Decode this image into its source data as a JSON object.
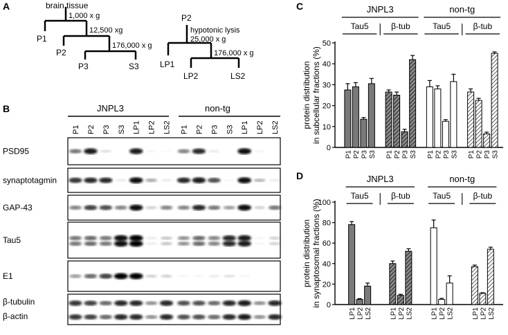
{
  "panel_a": {
    "letter": "A",
    "tree1": {
      "start": "brain tissue",
      "spin1": "1,000 x g",
      "spin2": "12,500 xg",
      "spin3": "176,000 x g",
      "p1": "P1",
      "p2": "P2",
      "p3": "P3",
      "s3": "S3"
    },
    "tree2": {
      "start": "P2",
      "step1": "hypotonic lysis",
      "step1b": "25,000 x g",
      "spin2": "176,000 x g",
      "lp1": "LP1",
      "lp2": "LP2",
      "ls2": "LS2"
    }
  },
  "panel_b": {
    "letter": "B",
    "group_left": "JNPL3",
    "group_right": "non-tg",
    "lanes": [
      "P1",
      "P2",
      "P3",
      "S3",
      "LP1",
      "LP2",
      "LS2"
    ],
    "blots": [
      {
        "label": "PSD95",
        "pattern": [
          0.55,
          0.9,
          0.15,
          0.0,
          0.9,
          0.05,
          0.03,
          0.5,
          0.85,
          0.1,
          0.0,
          0.95,
          0.05,
          0.0
        ]
      },
      {
        "label": "synaptotagmin",
        "pattern": [
          0.8,
          0.85,
          0.85,
          0.1,
          0.95,
          0.35,
          0.1,
          0.85,
          0.9,
          0.7,
          0.05,
          0.95,
          0.3,
          0.1
        ]
      },
      {
        "label": "GAP-43",
        "pattern": [
          0.5,
          0.75,
          0.7,
          0.5,
          0.95,
          0.2,
          0.5,
          0.5,
          0.85,
          0.55,
          0.4,
          0.95,
          0.2,
          0.55
        ]
      },
      {
        "label": "Tau5",
        "pattern": [
          0.55,
          0.6,
          0.55,
          0.95,
          1.0,
          0.1,
          0.25,
          0.45,
          0.6,
          0.5,
          0.85,
          0.9,
          0.05,
          0.2
        ]
      },
      {
        "label": "E1",
        "pattern": [
          0.4,
          0.6,
          0.75,
          1.0,
          1.0,
          0.2,
          0.2,
          0.05,
          0.05,
          0.1,
          0.15,
          0.05,
          0.0,
          0.0
        ]
      },
      {
        "label": "β-tubulin",
        "label2": "β-actin",
        "pattern": [
          0.8,
          0.75,
          0.6,
          0.85,
          0.85,
          0.45,
          0.85,
          0.7,
          0.7,
          0.6,
          0.85,
          0.9,
          0.45,
          0.85
        ]
      }
    ]
  },
  "chart_data": [
    {
      "panel": "C",
      "type": "bar",
      "ylabel": "protein distribution in subcellular fractions (%)",
      "ylim": [
        0,
        50
      ],
      "yticks": [
        0,
        10,
        20,
        30,
        40,
        50
      ],
      "groups": [
        "JNPL3",
        "non-tg"
      ],
      "subgroups": [
        "Tau5",
        "β-tub",
        "Tau5",
        "β-tub"
      ],
      "categories": [
        "P1",
        "P2",
        "P3",
        "S3"
      ],
      "series": [
        {
          "values": [
            27.5,
            29,
            13.5,
            30.5
          ],
          "errors": [
            3,
            2,
            0.8,
            2.5
          ],
          "fill": "gray"
        },
        {
          "values": [
            26.5,
            25,
            7.5,
            42
          ],
          "errors": [
            1,
            1.5,
            1.2,
            2
          ],
          "fill": "hatch-dark"
        },
        {
          "values": [
            29,
            28,
            12.5,
            31.5
          ],
          "errors": [
            3,
            1.5,
            0.8,
            3.5
          ],
          "fill": "white"
        },
        {
          "values": [
            26.5,
            22.5,
            6.5,
            45
          ],
          "errors": [
            1.5,
            1,
            0.8,
            0.7
          ],
          "fill": "hatch-light"
        }
      ]
    },
    {
      "panel": "D",
      "type": "bar",
      "ylabel": "protein distribution in synaptosomal fractions (%)",
      "ylim": [
        0,
        100
      ],
      "yticks": [
        0,
        20,
        40,
        60,
        80,
        100
      ],
      "groups": [
        "JNPL3",
        "non-tg"
      ],
      "subgroups": [
        "Tau5",
        "β-tub",
        "Tau5",
        "β-tub"
      ],
      "categories": [
        "LP1",
        "LP2",
        "LS2"
      ],
      "series": [
        {
          "values": [
            78,
            5,
            18
          ],
          "errors": [
            3,
            0.8,
            3
          ],
          "fill": "gray"
        },
        {
          "values": [
            40,
            9,
            52
          ],
          "errors": [
            2.5,
            1,
            2.5
          ],
          "fill": "hatch-dark"
        },
        {
          "values": [
            75,
            5,
            21
          ],
          "errors": [
            7.5,
            1,
            7
          ],
          "fill": "white"
        },
        {
          "values": [
            37,
            11,
            54
          ],
          "errors": [
            1.5,
            0.5,
            2
          ],
          "fill": "hatch-light"
        }
      ]
    }
  ],
  "colors": {
    "gray": "#7a7a7a",
    "hatch_dark": "#4a4a4a",
    "hatch_light": "#555555",
    "blot_band": "#000000"
  }
}
